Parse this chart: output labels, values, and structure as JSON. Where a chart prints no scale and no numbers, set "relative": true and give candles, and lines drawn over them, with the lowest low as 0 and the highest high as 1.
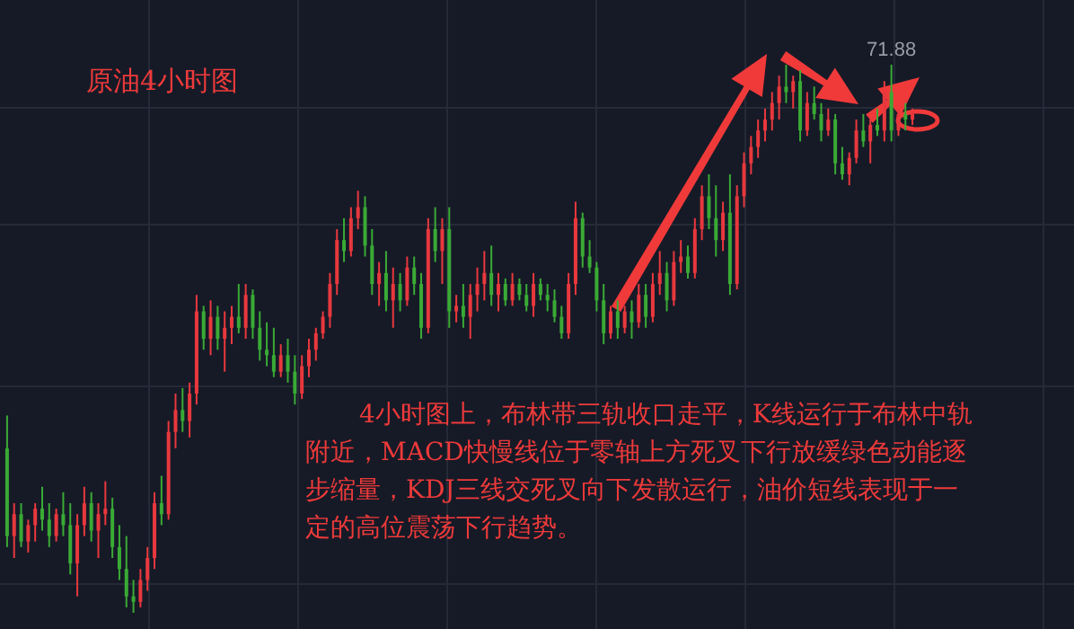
{
  "chart_data": {
    "type": "candlestick",
    "title": "原油4小时图",
    "relative": true,
    "grid": true,
    "tick_labels": false,
    "annotations": [
      "71.88",
      "4小时图上，布林带三轨收口走平，K线运行于布林中轨附近，MACD快慢线位于零轴上方死叉下行放缓绿色动能逐步缩量，KDJ三线交死叉向下发散运行，油价短线表现于一定的高位震荡下行趋势。"
    ],
    "categories": [
      null,
      null,
      null,
      null,
      null,
      null,
      null,
      null,
      null,
      null,
      null,
      null,
      null,
      null,
      null,
      null,
      null,
      null,
      null,
      null,
      null,
      null,
      null,
      null,
      null,
      null,
      null,
      null,
      null,
      null,
      null,
      null,
      null,
      null,
      null,
      null,
      null,
      null,
      null,
      null,
      null,
      null,
      null,
      null,
      null,
      null,
      null,
      null,
      null,
      null,
      null,
      null,
      null,
      null,
      null,
      null,
      null,
      null,
      null,
      null,
      null,
      null,
      null,
      null,
      null,
      null,
      null,
      null,
      null,
      null,
      null,
      null,
      null,
      null,
      null,
      null,
      null,
      null,
      null,
      null,
      null,
      null,
      null,
      null,
      null,
      null,
      null,
      null,
      null,
      null,
      null,
      null,
      null,
      null,
      null,
      null,
      null,
      null,
      null,
      null,
      null,
      null,
      null,
      null,
      null,
      null,
      null,
      null,
      null,
      null,
      null,
      null,
      null,
      null,
      null,
      null,
      null,
      null,
      null,
      null,
      null,
      null,
      null,
      null,
      null,
      null,
      null,
      null,
      null,
      null
    ],
    "ohlc": [
      [
        0.3,
        0.36,
        0.12,
        0.14
      ],
      [
        0.14,
        0.2,
        0.1,
        0.18
      ],
      [
        0.18,
        0.2,
        0.12,
        0.13
      ],
      [
        0.13,
        0.17,
        0.11,
        0.16
      ],
      [
        0.16,
        0.2,
        0.13,
        0.19
      ],
      [
        0.19,
        0.23,
        0.15,
        0.17
      ],
      [
        0.17,
        0.2,
        0.12,
        0.14
      ],
      [
        0.14,
        0.19,
        0.13,
        0.18
      ],
      [
        0.18,
        0.22,
        0.14,
        0.16
      ],
      [
        0.16,
        0.2,
        0.07,
        0.09
      ],
      [
        0.09,
        0.18,
        0.03,
        0.16
      ],
      [
        0.16,
        0.23,
        0.14,
        0.2
      ],
      [
        0.2,
        0.22,
        0.13,
        0.15
      ],
      [
        0.15,
        0.2,
        0.1,
        0.18
      ],
      [
        0.18,
        0.24,
        0.16,
        0.19
      ],
      [
        0.19,
        0.21,
        0.1,
        0.12
      ],
      [
        0.12,
        0.16,
        0.06,
        0.08
      ],
      [
        0.08,
        0.14,
        0.01,
        0.03
      ],
      [
        0.03,
        0.06,
        0,
        0.02
      ],
      [
        0.02,
        0.08,
        0.01,
        0.06
      ],
      [
        0.06,
        0.12,
        0.04,
        0.1
      ],
      [
        0.1,
        0.22,
        0.08,
        0.2
      ],
      [
        0.2,
        0.25,
        0.16,
        0.18
      ],
      [
        0.18,
        0.35,
        0.17,
        0.33
      ],
      [
        0.33,
        0.4,
        0.3,
        0.37
      ],
      [
        0.37,
        0.41,
        0.33,
        0.35
      ],
      [
        0.35,
        0.42,
        0.32,
        0.4
      ],
      [
        0.4,
        0.58,
        0.38,
        0.55
      ],
      [
        0.55,
        0.56,
        0.48,
        0.5
      ],
      [
        0.5,
        0.57,
        0.47,
        0.54
      ],
      [
        0.54,
        0.56,
        0.48,
        0.5
      ],
      [
        0.5,
        0.55,
        0.44,
        0.52
      ],
      [
        0.52,
        0.56,
        0.49,
        0.54
      ],
      [
        0.54,
        0.6,
        0.51,
        0.52
      ],
      [
        0.52,
        0.6,
        0.5,
        0.58
      ],
      [
        0.58,
        0.59,
        0.5,
        0.52
      ],
      [
        0.52,
        0.55,
        0.46,
        0.48
      ],
      [
        0.48,
        0.53,
        0.45,
        0.47
      ],
      [
        0.47,
        0.52,
        0.43,
        0.44
      ],
      [
        0.44,
        0.49,
        0.43,
        0.47
      ],
      [
        0.47,
        0.5,
        0.42,
        0.44
      ],
      [
        0.44,
        0.47,
        0.38,
        0.4
      ],
      [
        0.4,
        0.47,
        0.39,
        0.45
      ],
      [
        0.45,
        0.5,
        0.43,
        0.48
      ],
      [
        0.48,
        0.52,
        0.46,
        0.51
      ],
      [
        0.51,
        0.55,
        0.5,
        0.54
      ],
      [
        0.54,
        0.62,
        0.52,
        0.6
      ],
      [
        0.6,
        0.7,
        0.58,
        0.68
      ],
      [
        0.68,
        0.72,
        0.64,
        0.66
      ],
      [
        0.66,
        0.74,
        0.65,
        0.72
      ],
      [
        0.72,
        0.77,
        0.7,
        0.74
      ],
      [
        0.74,
        0.76,
        0.65,
        0.67
      ],
      [
        0.67,
        0.7,
        0.58,
        0.6
      ],
      [
        0.6,
        0.64,
        0.56,
        0.62
      ],
      [
        0.62,
        0.66,
        0.55,
        0.57
      ],
      [
        0.57,
        0.63,
        0.52,
        0.6
      ],
      [
        0.6,
        0.62,
        0.55,
        0.57
      ],
      [
        0.57,
        0.65,
        0.56,
        0.63
      ],
      [
        0.63,
        0.65,
        0.58,
        0.6
      ],
      [
        0.6,
        0.62,
        0.5,
        0.52
      ],
      [
        0.52,
        0.72,
        0.51,
        0.7
      ],
      [
        0.7,
        0.74,
        0.64,
        0.66
      ],
      [
        0.66,
        0.72,
        0.6,
        0.7
      ],
      [
        0.7,
        0.74,
        0.52,
        0.55
      ],
      [
        0.55,
        0.58,
        0.53,
        0.56
      ],
      [
        0.56,
        0.6,
        0.52,
        0.54
      ],
      [
        0.54,
        0.6,
        0.5,
        0.58
      ],
      [
        0.58,
        0.63,
        0.55,
        0.6
      ],
      [
        0.6,
        0.66,
        0.57,
        0.62
      ],
      [
        0.62,
        0.67,
        0.56,
        0.58
      ],
      [
        0.58,
        0.62,
        0.55,
        0.6
      ],
      [
        0.6,
        0.61,
        0.56,
        0.57
      ],
      [
        0.57,
        0.62,
        0.56,
        0.6
      ],
      [
        0.6,
        0.61,
        0.57,
        0.58
      ],
      [
        0.58,
        0.6,
        0.55,
        0.56
      ],
      [
        0.56,
        0.62,
        0.54,
        0.6
      ],
      [
        0.6,
        0.61,
        0.57,
        0.58
      ],
      [
        0.58,
        0.6,
        0.55,
        0.57
      ],
      [
        0.57,
        0.59,
        0.53,
        0.54
      ],
      [
        0.54,
        0.56,
        0.5,
        0.51
      ],
      [
        0.51,
        0.62,
        0.5,
        0.6
      ],
      [
        0.6,
        0.75,
        0.58,
        0.72
      ],
      [
        0.72,
        0.73,
        0.63,
        0.65
      ],
      [
        0.65,
        0.68,
        0.62,
        0.63
      ],
      [
        0.63,
        0.64,
        0.55,
        0.57
      ],
      [
        0.57,
        0.6,
        0.49,
        0.51
      ],
      [
        0.51,
        0.56,
        0.5,
        0.55
      ],
      [
        0.55,
        0.57,
        0.5,
        0.52
      ],
      [
        0.52,
        0.56,
        0.51,
        0.55
      ],
      [
        0.55,
        0.57,
        0.5,
        0.53
      ],
      [
        0.53,
        0.6,
        0.52,
        0.58
      ],
      [
        0.58,
        0.6,
        0.52,
        0.54
      ],
      [
        0.54,
        0.62,
        0.53,
        0.6
      ],
      [
        0.6,
        0.66,
        0.58,
        0.62
      ],
      [
        0.62,
        0.64,
        0.55,
        0.57
      ],
      [
        0.57,
        0.66,
        0.56,
        0.64
      ],
      [
        0.64,
        0.68,
        0.62,
        0.65
      ],
      [
        0.65,
        0.67,
        0.61,
        0.62
      ],
      [
        0.62,
        0.72,
        0.61,
        0.7
      ],
      [
        0.7,
        0.78,
        0.68,
        0.76
      ],
      [
        0.76,
        0.8,
        0.7,
        0.72
      ],
      [
        0.72,
        0.78,
        0.65,
        0.68
      ],
      [
        0.68,
        0.75,
        0.66,
        0.73
      ],
      [
        0.73,
        0.8,
        0.58,
        0.6
      ],
      [
        0.6,
        0.78,
        0.59,
        0.76
      ],
      [
        0.76,
        0.84,
        0.74,
        0.82
      ],
      [
        0.82,
        0.87,
        0.8,
        0.85
      ],
      [
        0.85,
        0.9,
        0.83,
        0.88
      ],
      [
        0.88,
        0.92,
        0.86,
        0.9
      ],
      [
        0.9,
        0.95,
        0.88,
        0.93
      ],
      [
        0.93,
        0.98,
        0.9,
        0.96
      ],
      [
        0.96,
        1,
        0.93,
        0.95
      ],
      [
        0.95,
        0.98,
        0.92,
        0.97
      ],
      [
        0.97,
        0.99,
        0.86,
        0.88
      ],
      [
        0.88,
        0.95,
        0.87,
        0.93
      ],
      [
        0.93,
        0.96,
        0.9,
        0.91
      ],
      [
        0.91,
        0.93,
        0.86,
        0.88
      ],
      [
        0.88,
        0.92,
        0.87,
        0.9
      ],
      [
        0.9,
        0.91,
        0.8,
        0.82
      ],
      [
        0.82,
        0.85,
        0.79,
        0.8
      ],
      [
        0.8,
        0.84,
        0.78,
        0.83
      ],
      [
        0.83,
        0.9,
        0.82,
        0.88
      ],
      [
        0.88,
        0.91,
        0.85,
        0.86
      ],
      [
        0.86,
        0.9,
        0.82,
        0.89
      ],
      [
        0.89,
        0.92,
        0.87,
        0.88
      ],
      [
        0.88,
        0.97,
        0.86,
        0.95
      ],
      [
        0.95,
        1,
        0.86,
        0.88
      ],
      [
        0.88,
        0.92,
        0.87,
        0.91
      ],
      [
        0.91,
        0.93,
        0.88,
        0.9
      ],
      [
        0.9,
        0.92,
        0.89,
        0.91
      ]
    ]
  }
}
